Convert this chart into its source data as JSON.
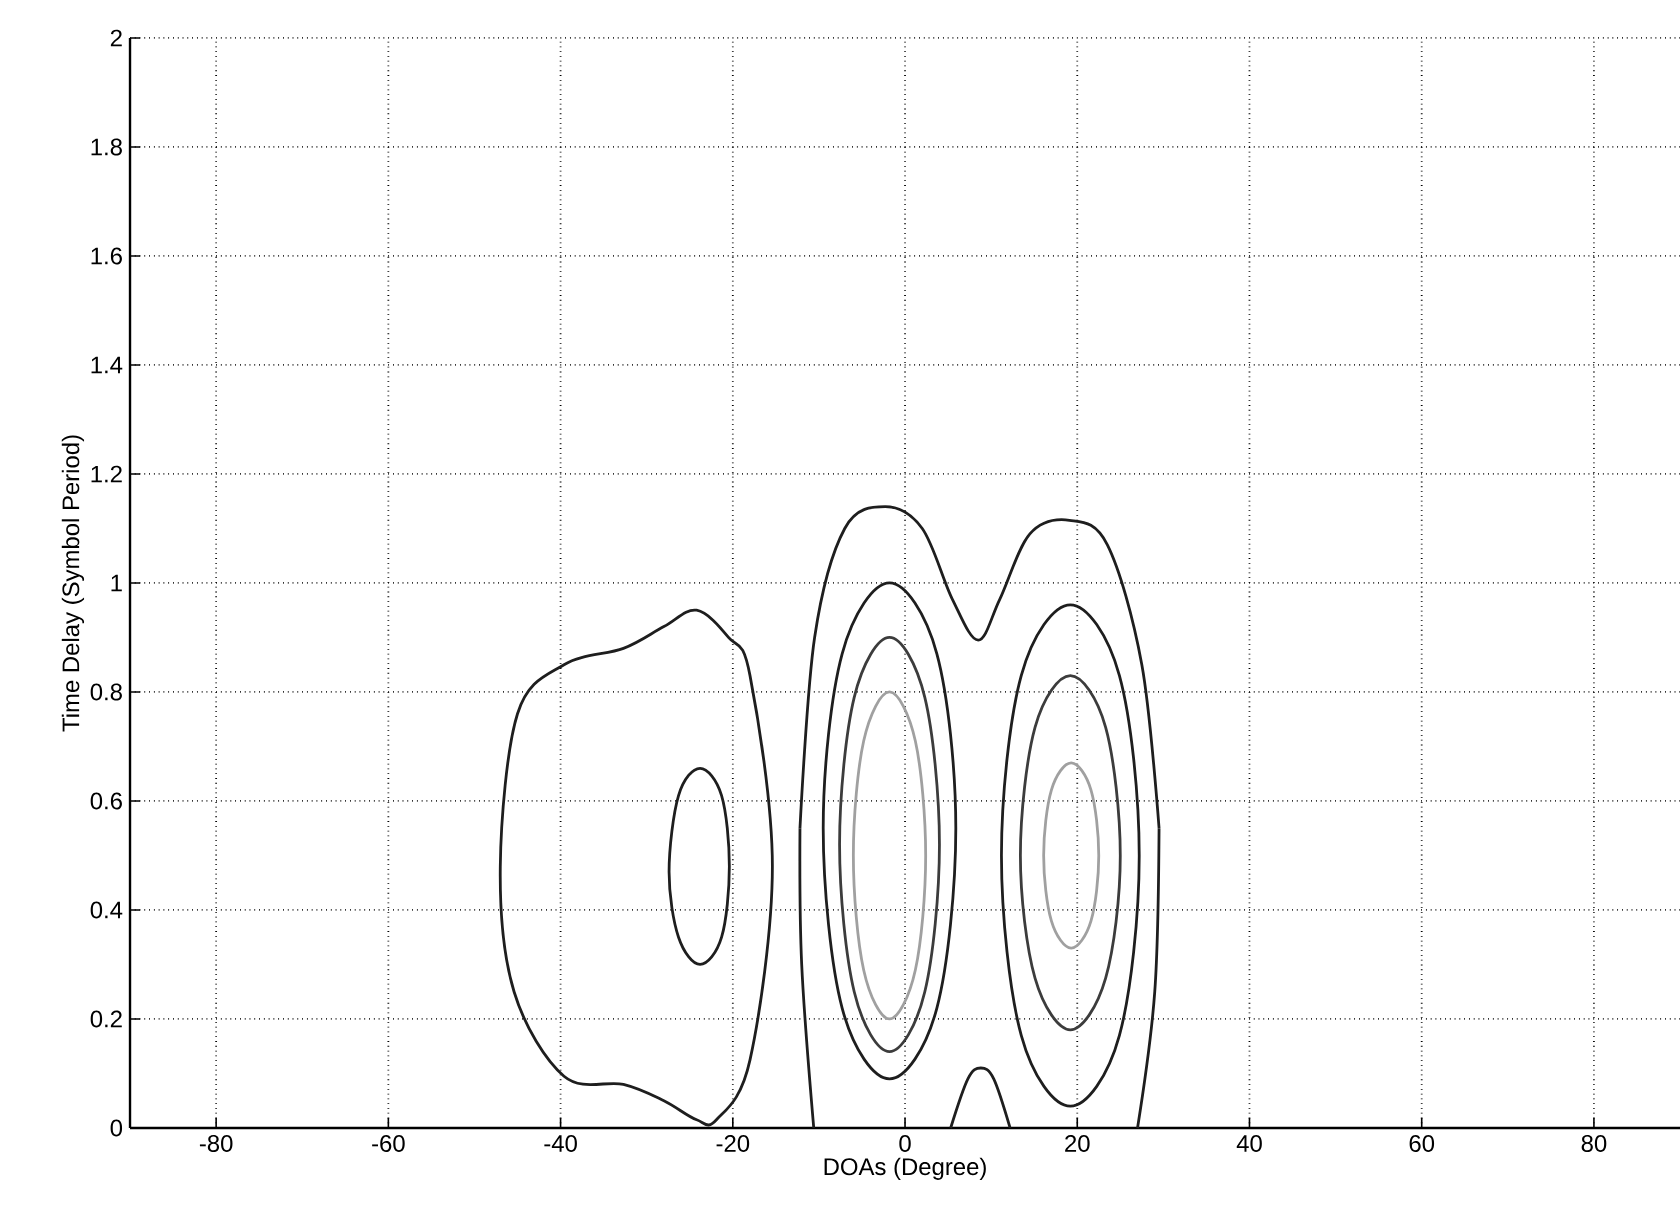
{
  "chart_data": {
    "type": "line",
    "xlabel": "DOAs (Degree)",
    "ylabel": "Time Delay (Symbol Period)",
    "xlim": [
      -90,
      90
    ],
    "ylim": [
      0,
      2
    ],
    "xticks": [
      -80,
      -60,
      -40,
      -20,
      0,
      20,
      40,
      60,
      80
    ],
    "yticks": [
      0,
      0.2,
      0.4,
      0.6,
      0.8,
      1,
      1.2,
      1.4,
      1.6,
      1.8,
      2
    ],
    "grid": true,
    "line_style": "solid",
    "marker": "none",
    "series": [
      {
        "color": "#1e1e1e",
        "x": [
          -12.2,
          -12,
          -10.6
        ],
        "values": [
          0.55,
          0.3,
          0
        ]
      },
      {
        "color": "#1e1e1e",
        "x": [
          -12.2,
          -10.5,
          -7,
          -2.3,
          2,
          5.5,
          8.5,
          11,
          14.5,
          19.1,
          23.5,
          27.5,
          29.5
        ],
        "values": [
          0.55,
          0.9,
          1.1,
          1.14,
          1.1,
          0.97,
          0.895,
          0.97,
          1.09,
          1.115,
          1.07,
          0.85,
          0.55
        ]
      },
      {
        "color": "#1e1e1e",
        "x": [
          27,
          29,
          29.5
        ],
        "values": [
          0,
          0.25,
          0.55
        ]
      },
      {
        "color": "#1e1e1e",
        "x": [
          5.3,
          7.3,
          8.8,
          10.3,
          12.2
        ],
        "values": [
          0,
          0.09,
          0.11,
          0.09,
          0
        ]
      }
    ]
  }
}
